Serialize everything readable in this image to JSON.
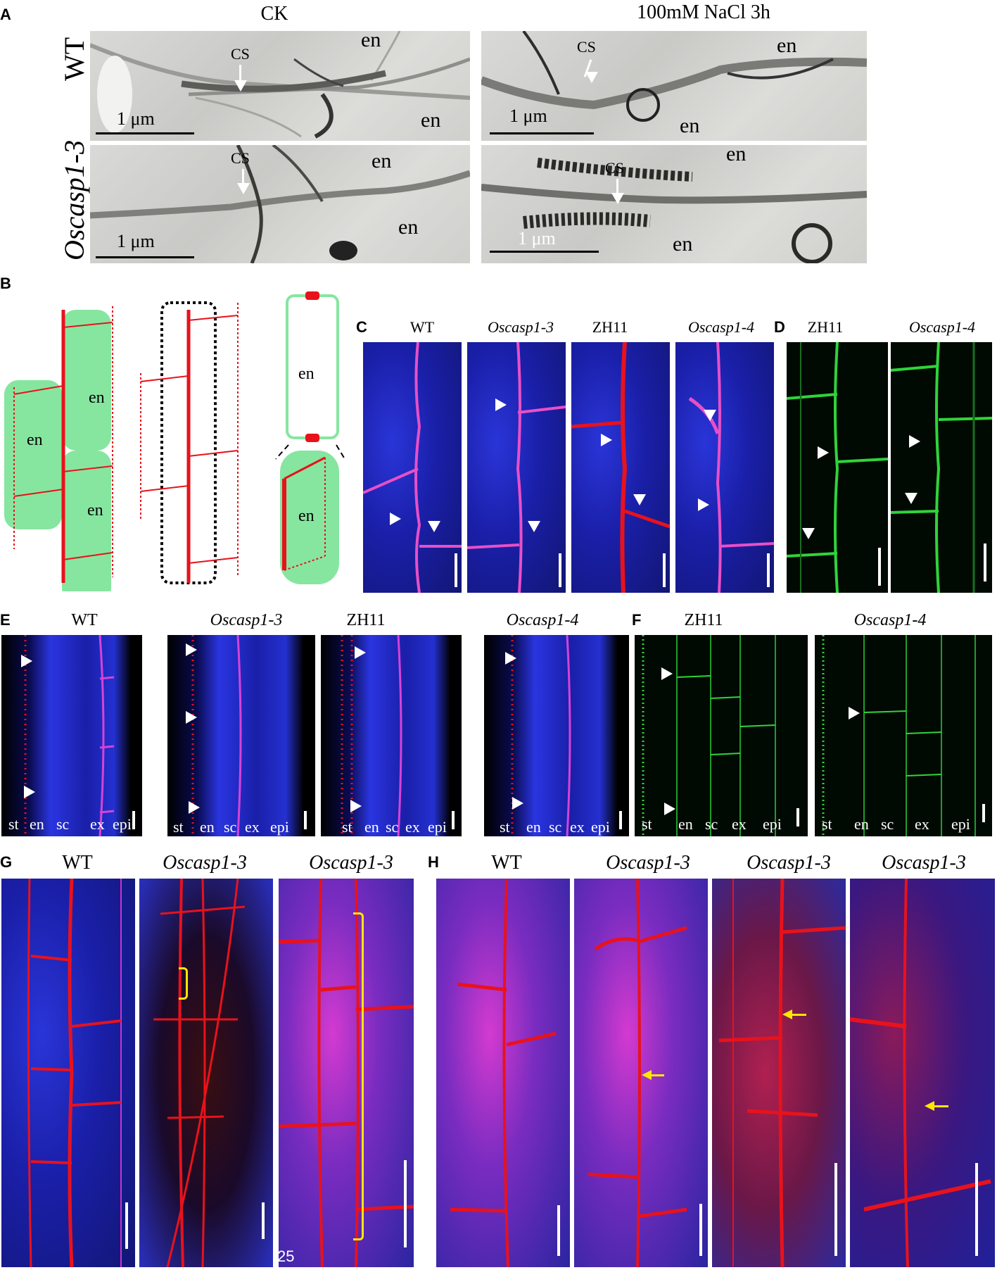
{
  "panels": {
    "A": "A",
    "B": "B",
    "C": "C",
    "D": "D",
    "E": "E",
    "F": "F",
    "G": "G",
    "H": "H"
  },
  "panelA": {
    "col_headers": [
      "CK",
      "100mM NaCl 3h"
    ],
    "row_labels": [
      "WT",
      "Oscasp1-3"
    ],
    "cs": "CS",
    "en": "en",
    "scale": "1 μm"
  },
  "panelB": {
    "en": "en"
  },
  "panelC": {
    "headers": [
      "WT",
      "Oscasp1-3",
      "ZH11",
      "Oscasp1-4"
    ]
  },
  "panelD": {
    "headers": [
      "ZH11",
      "Oscasp1-4"
    ]
  },
  "panelE": {
    "headers": [
      "WT",
      "Oscasp1-3",
      "ZH11",
      "Oscasp1-4"
    ],
    "tissues": [
      "st",
      "en",
      "sc",
      "ex",
      "epi"
    ]
  },
  "panelF": {
    "headers": [
      "ZH11",
      "Oscasp1-4"
    ],
    "tissues": [
      "st",
      "en",
      "sc",
      "ex",
      "epi"
    ]
  },
  "panelG": {
    "headers": [
      "WT",
      "Oscasp1-3",
      "Oscasp1-3"
    ],
    "stray": "25"
  },
  "panelH": {
    "headers": [
      "WT",
      "Oscasp1-3",
      "Oscasp1-3",
      "Oscasp1-3"
    ]
  },
  "colors": {
    "casparian_red": "#e8121c",
    "endodermis_green": "#86e6a0",
    "confocal_blue": "#1a1fa8",
    "confocal_green": "#2fd43a",
    "arrow_yellow": "#ffe600"
  }
}
